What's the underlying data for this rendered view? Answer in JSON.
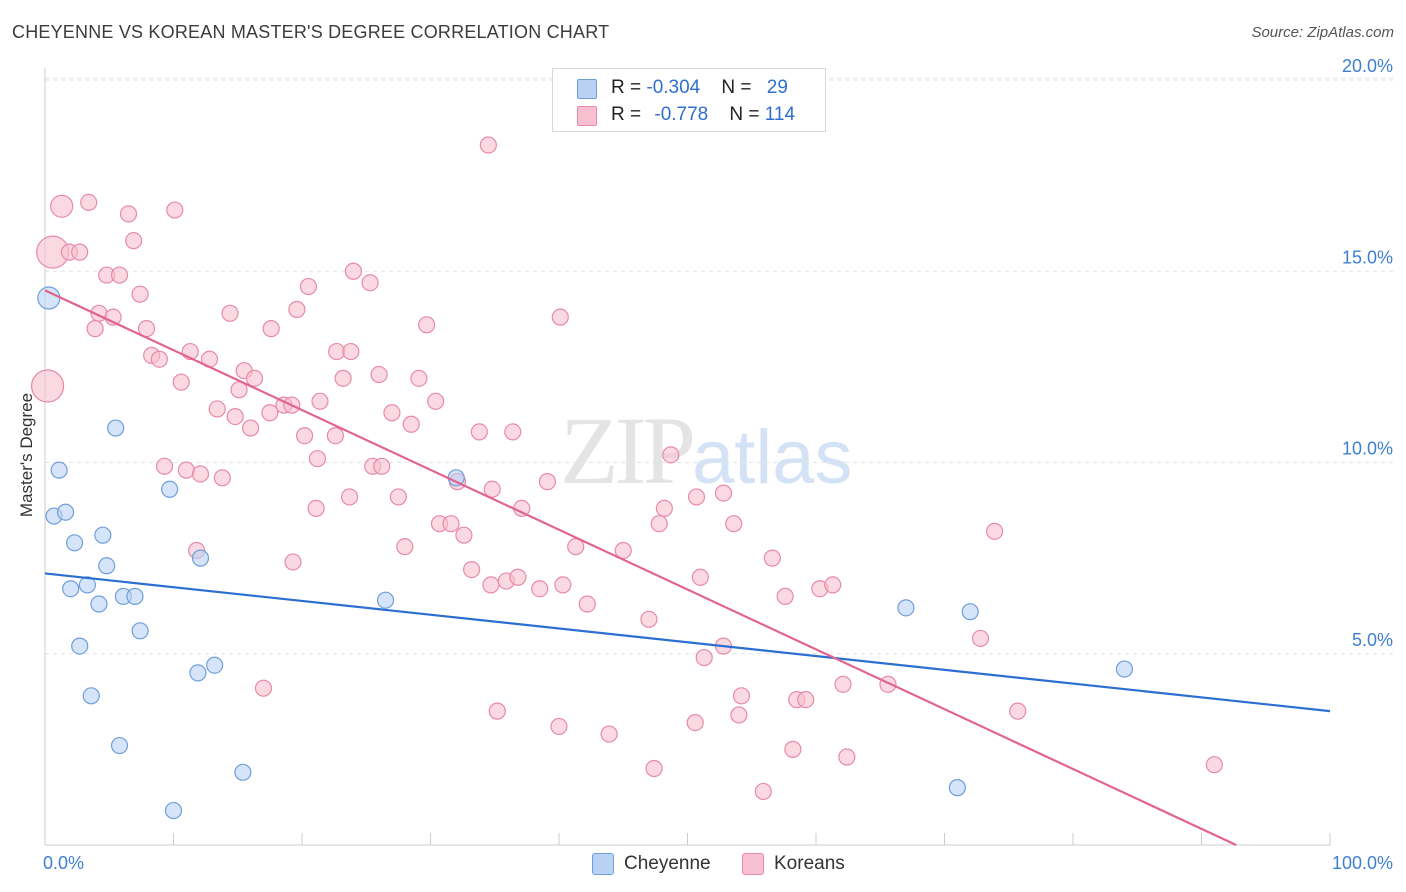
{
  "title": "CHEYENNE VS KOREAN MASTER'S DEGREE CORRELATION CHART",
  "source": "Source: ZipAtlas.com",
  "watermark": {
    "zip": "ZIP",
    "atlas": "atlas"
  },
  "colors": {
    "cheyenne_fill": "#b9d2f3",
    "cheyenne_stroke": "#6f9fdb",
    "cheyenne_line": "#2a6fd1",
    "koreans_fill": "#f7bfd0",
    "koreans_stroke": "#e88aa8",
    "koreans_line": "#e0648f",
    "tick_text": "#3f7fd0"
  },
  "legend": {
    "rows": [
      {
        "r_label": "R = ",
        "r_value": "-0.304",
        "n_label": "N = ",
        "n_value": "29"
      },
      {
        "r_label": "R = ",
        "r_value": "-0.778",
        "n_label": "N = ",
        "n_value": "114"
      }
    ]
  },
  "bottom_legend": {
    "series1": "Cheyenne",
    "series2": "Koreans"
  },
  "chart_data": {
    "type": "scatter",
    "ylabel": "Master's Degree",
    "xlim": [
      0,
      100
    ],
    "ylim": [
      0,
      20
    ],
    "x_tick_labels": [
      "0.0%",
      "100.0%"
    ],
    "y_ticks": [
      5,
      10,
      15,
      20
    ],
    "y_tick_labels": [
      "5.0%",
      "10.0%",
      "15.0%",
      "20.0%"
    ],
    "grid": true,
    "legend_position": "top-center",
    "series": [
      {
        "name": "Cheyenne",
        "points": [
          [
            0.3,
            14.3,
            2
          ],
          [
            5.5,
            10.9,
            1
          ],
          [
            1.1,
            9.8,
            1
          ],
          [
            0.7,
            8.6,
            1
          ],
          [
            1.6,
            8.7,
            1
          ],
          [
            9.7,
            9.3,
            1
          ],
          [
            2.3,
            7.9,
            1
          ],
          [
            4.5,
            8.1,
            1
          ],
          [
            12.1,
            7.5,
            1
          ],
          [
            4.8,
            7.3,
            1
          ],
          [
            3.3,
            6.8,
            1
          ],
          [
            2.0,
            6.7,
            1
          ],
          [
            6.1,
            6.5,
            1
          ],
          [
            7.0,
            6.5,
            1
          ],
          [
            4.2,
            6.3,
            1
          ],
          [
            26.5,
            6.4,
            1
          ],
          [
            32.0,
            9.6,
            1
          ],
          [
            7.4,
            5.6,
            1
          ],
          [
            2.7,
            5.2,
            1
          ],
          [
            13.2,
            4.7,
            1
          ],
          [
            11.9,
            4.5,
            1
          ],
          [
            3.6,
            3.9,
            1
          ],
          [
            5.8,
            2.6,
            1
          ],
          [
            15.4,
            1.9,
            1
          ],
          [
            10.0,
            0.9,
            1
          ],
          [
            67.0,
            6.2,
            1
          ],
          [
            72.0,
            6.1,
            1
          ],
          [
            84.0,
            4.6,
            1
          ],
          [
            71.0,
            1.5,
            1
          ]
        ],
        "trend": [
          [
            0,
            7.1
          ],
          [
            100,
            3.5
          ]
        ]
      },
      {
        "name": "Koreans",
        "points": [
          [
            1.3,
            16.7,
            2
          ],
          [
            0.6,
            15.5,
            3
          ],
          [
            0.2,
            12.0,
            3
          ],
          [
            1.9,
            15.5,
            1
          ],
          [
            2.7,
            15.5,
            1
          ],
          [
            3.4,
            16.8,
            1
          ],
          [
            6.5,
            16.5,
            1
          ],
          [
            10.1,
            16.6,
            1
          ],
          [
            6.9,
            15.8,
            1
          ],
          [
            4.8,
            14.9,
            1
          ],
          [
            5.8,
            14.9,
            1
          ],
          [
            7.4,
            14.4,
            1
          ],
          [
            4.2,
            13.9,
            1
          ],
          [
            5.3,
            13.8,
            1
          ],
          [
            3.9,
            13.5,
            1
          ],
          [
            7.9,
            13.5,
            1
          ],
          [
            8.3,
            12.8,
            1
          ],
          [
            8.9,
            12.7,
            1
          ],
          [
            11.3,
            12.9,
            1
          ],
          [
            12.8,
            12.7,
            1
          ],
          [
            14.4,
            13.9,
            1
          ],
          [
            17.6,
            13.5,
            1
          ],
          [
            19.6,
            14.0,
            1
          ],
          [
            20.5,
            14.6,
            1
          ],
          [
            24.0,
            15.0,
            1
          ],
          [
            25.3,
            14.7,
            1
          ],
          [
            10.6,
            12.1,
            1
          ],
          [
            15.5,
            12.4,
            1
          ],
          [
            16.3,
            12.2,
            1
          ],
          [
            22.7,
            12.9,
            1
          ],
          [
            23.8,
            12.9,
            1
          ],
          [
            23.2,
            12.2,
            1
          ],
          [
            29.1,
            12.2,
            1
          ],
          [
            29.7,
            13.6,
            1
          ],
          [
            40.1,
            13.8,
            1
          ],
          [
            34.5,
            18.3,
            1
          ],
          [
            13.4,
            11.4,
            1
          ],
          [
            14.8,
            11.2,
            1
          ],
          [
            16.0,
            10.9,
            1
          ],
          [
            17.5,
            11.3,
            1
          ],
          [
            18.6,
            11.5,
            1
          ],
          [
            19.2,
            11.5,
            1
          ],
          [
            21.4,
            11.6,
            1
          ],
          [
            27.0,
            11.3,
            1
          ],
          [
            28.5,
            11.0,
            1
          ],
          [
            30.4,
            11.6,
            1
          ],
          [
            20.2,
            10.7,
            1
          ],
          [
            22.6,
            10.7,
            1
          ],
          [
            21.2,
            10.1,
            1
          ],
          [
            33.8,
            10.8,
            1
          ],
          [
            36.4,
            10.8,
            1
          ],
          [
            9.3,
            9.9,
            1
          ],
          [
            11.0,
            9.8,
            1
          ],
          [
            12.1,
            9.7,
            1
          ],
          [
            13.8,
            9.6,
            1
          ],
          [
            25.5,
            9.9,
            1
          ],
          [
            26.2,
            9.9,
            1
          ],
          [
            32.1,
            9.5,
            1
          ],
          [
            34.8,
            9.3,
            1
          ],
          [
            37.1,
            8.8,
            1
          ],
          [
            39.1,
            9.5,
            1
          ],
          [
            48.7,
            10.2,
            1
          ],
          [
            50.7,
            9.1,
            1
          ],
          [
            52.8,
            9.2,
            1
          ],
          [
            23.7,
            9.1,
            1
          ],
          [
            27.5,
            9.1,
            1
          ],
          [
            21.1,
            8.8,
            1
          ],
          [
            30.7,
            8.4,
            1
          ],
          [
            31.6,
            8.4,
            1
          ],
          [
            32.6,
            8.1,
            1
          ],
          [
            41.3,
            7.8,
            1
          ],
          [
            45.0,
            7.7,
            1
          ],
          [
            48.2,
            8.8,
            1
          ],
          [
            47.8,
            8.4,
            1
          ],
          [
            53.6,
            8.4,
            1
          ],
          [
            73.9,
            8.2,
            1
          ],
          [
            11.8,
            7.7,
            1
          ],
          [
            19.3,
            7.4,
            1
          ],
          [
            28.0,
            7.8,
            1
          ],
          [
            33.2,
            7.2,
            1
          ],
          [
            34.7,
            6.8,
            1
          ],
          [
            35.9,
            6.9,
            1
          ],
          [
            36.8,
            7.0,
            1
          ],
          [
            38.5,
            6.7,
            1
          ],
          [
            40.3,
            6.8,
            1
          ],
          [
            42.2,
            6.3,
            1
          ],
          [
            51.0,
            7.0,
            1
          ],
          [
            56.6,
            7.5,
            1
          ],
          [
            57.6,
            6.5,
            1
          ],
          [
            60.3,
            6.7,
            1
          ],
          [
            61.3,
            6.8,
            1
          ],
          [
            47.0,
            5.9,
            1
          ],
          [
            52.8,
            5.2,
            1
          ],
          [
            51.3,
            4.9,
            1
          ],
          [
            72.8,
            5.4,
            1
          ],
          [
            17.0,
            4.1,
            1
          ],
          [
            35.2,
            3.5,
            1
          ],
          [
            40.0,
            3.1,
            1
          ],
          [
            43.9,
            2.9,
            1
          ],
          [
            47.4,
            2.0,
            1
          ],
          [
            50.6,
            3.2,
            1
          ],
          [
            54.2,
            3.9,
            1
          ],
          [
            54.0,
            3.4,
            1
          ],
          [
            58.5,
            3.8,
            1
          ],
          [
            59.2,
            3.8,
            1
          ],
          [
            62.1,
            4.2,
            1
          ],
          [
            65.6,
            4.2,
            1
          ],
          [
            75.7,
            3.5,
            1
          ],
          [
            58.2,
            2.5,
            1
          ],
          [
            62.4,
            2.3,
            1
          ],
          [
            55.9,
            1.4,
            1
          ],
          [
            91.0,
            2.1,
            1
          ],
          [
            15.1,
            11.9,
            1
          ],
          [
            26.0,
            12.3,
            1
          ]
        ],
        "trend": [
          [
            0,
            14.5
          ],
          [
            92.7,
            0
          ]
        ]
      }
    ]
  }
}
